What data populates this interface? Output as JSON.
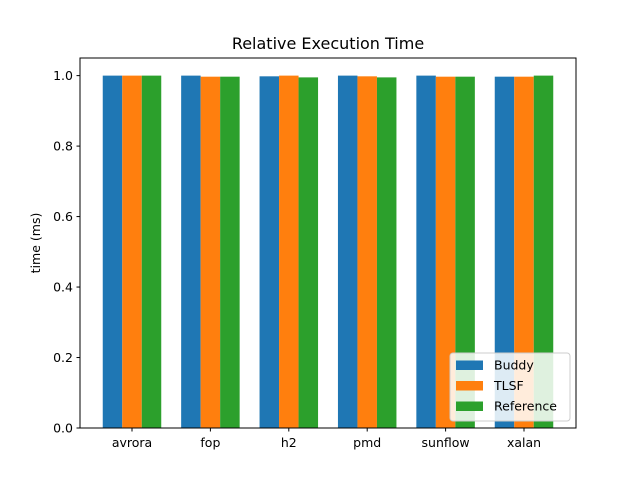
{
  "chart_data": {
    "type": "bar",
    "title": "Relative Execution Time",
    "xlabel": "",
    "ylabel": "time (ms)",
    "ylim": [
      0,
      1.05
    ],
    "yticks": [
      0.0,
      0.2,
      0.4,
      0.6,
      0.8,
      1.0
    ],
    "ytick_labels": [
      "0.0",
      "0.2",
      "0.4",
      "0.6",
      "0.8",
      "1.0"
    ],
    "categories": [
      "avrora",
      "fop",
      "h2",
      "pmd",
      "sunflow",
      "xalan"
    ],
    "series": [
      {
        "name": "Buddy",
        "color": "#1f77b4",
        "values": [
          1.0,
          1.0,
          0.998,
          1.0,
          1.0,
          0.997
        ]
      },
      {
        "name": "TLSF",
        "color": "#ff7f0e",
        "values": [
          1.0,
          0.997,
          1.0,
          0.998,
          0.997,
          0.997
        ]
      },
      {
        "name": "Reference",
        "color": "#2ca02c",
        "values": [
          1.0,
          0.997,
          0.995,
          0.995,
          0.997,
          1.0
        ]
      }
    ],
    "grid": false,
    "legend_position": "bottom-right"
  }
}
